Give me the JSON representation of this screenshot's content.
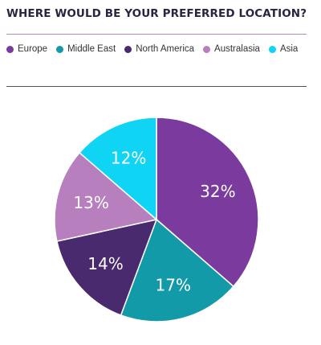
{
  "chart_data": {
    "type": "pie",
    "title": "WHERE WOULD BE YOUR PREFERRED LOCATION?",
    "legend_position": "top",
    "slices": [
      {
        "label": "Europe",
        "value": 32,
        "display": "32%",
        "color": "#7b3b9e"
      },
      {
        "label": "Middle East",
        "value": 17,
        "display": "17%",
        "color": "#129aa8"
      },
      {
        "label": "North America",
        "value": 14,
        "display": "14%",
        "color": "#4a2a6e"
      },
      {
        "label": "Australasia",
        "value": 13,
        "display": "13%",
        "color": "#b77fbd"
      },
      {
        "label": "Asia",
        "value": 12,
        "display": "12%",
        "color": "#10d4f4"
      }
    ]
  }
}
